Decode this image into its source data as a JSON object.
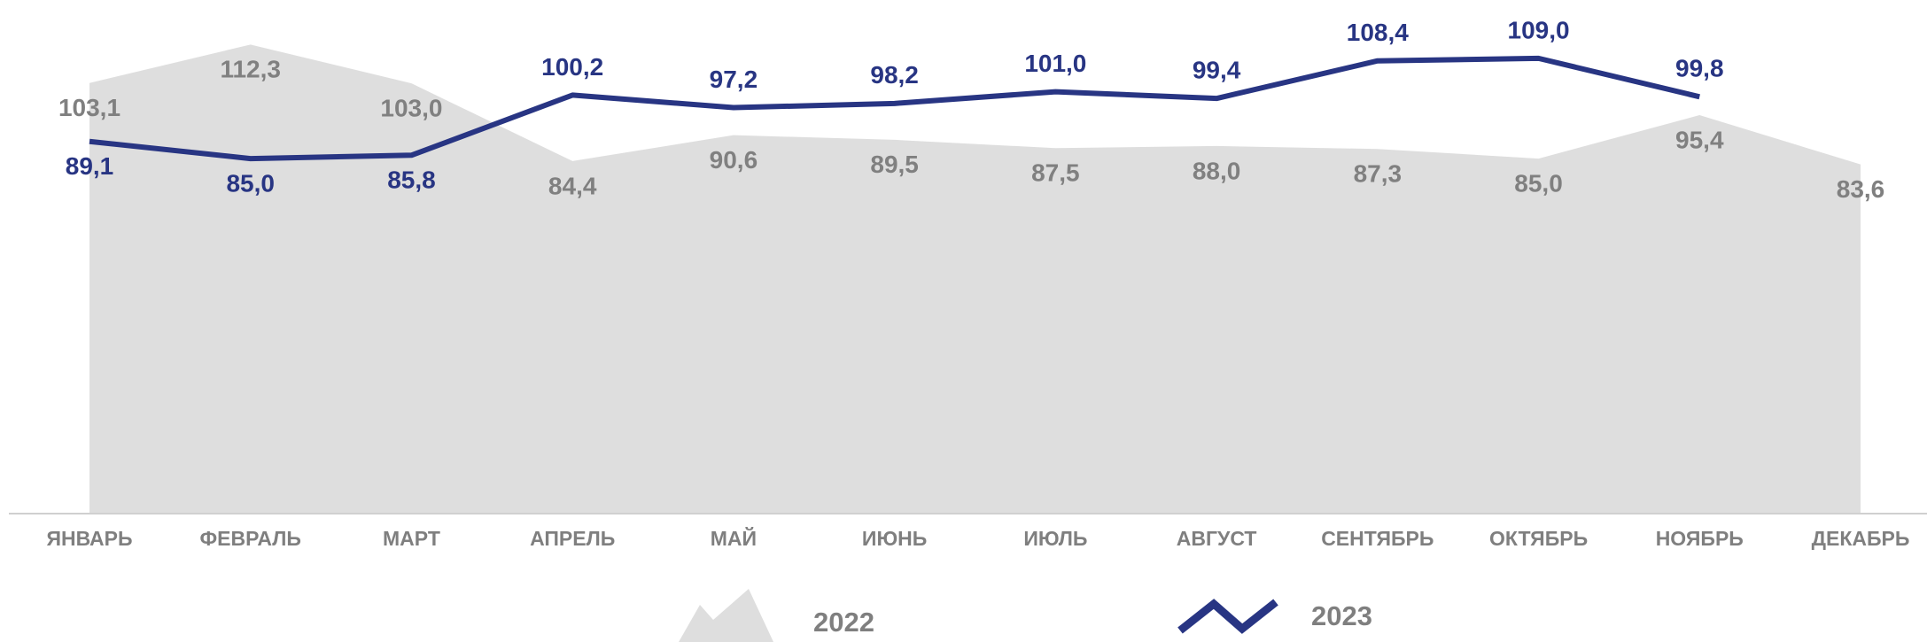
{
  "chart_data": {
    "type": "line",
    "categories": [
      "ЯНВАРЬ",
      "ФЕВРАЛЬ",
      "МАРТ",
      "АПРЕЛЬ",
      "МАЙ",
      "ИЮНЬ",
      "ИЮЛЬ",
      "АВГУСТ",
      "СЕНТЯБРЬ",
      "ОКТЯБРЬ",
      "НОЯБРЬ",
      "ДЕКАБРЬ"
    ],
    "ylim": [
      0,
      120
    ],
    "series": [
      {
        "name": "2022",
        "type": "area",
        "color": "#dedede",
        "label_color": "#808080",
        "values": [
          103.1,
          112.3,
          103.0,
          84.4,
          90.6,
          89.5,
          87.5,
          88.0,
          87.3,
          85.0,
          95.4,
          83.6
        ],
        "value_labels": [
          "103,1",
          "112,3",
          "103,0",
          "84,4",
          "90,6",
          "89,5",
          "87,5",
          "88,0",
          "87,3",
          "85,0",
          "95,4",
          "83,6"
        ]
      },
      {
        "name": "2023",
        "type": "line",
        "color": "#283583",
        "label_color": "#283583",
        "values": [
          89.1,
          85.0,
          85.8,
          100.2,
          97.2,
          98.2,
          101.0,
          99.4,
          108.4,
          109.0,
          99.8,
          null
        ],
        "value_labels": [
          "89,1",
          "85,0",
          "85,8",
          "100,2",
          "97,2",
          "98,2",
          "101,0",
          "99,4",
          "108,4",
          "109,0",
          "99,8",
          null
        ]
      }
    ]
  }
}
